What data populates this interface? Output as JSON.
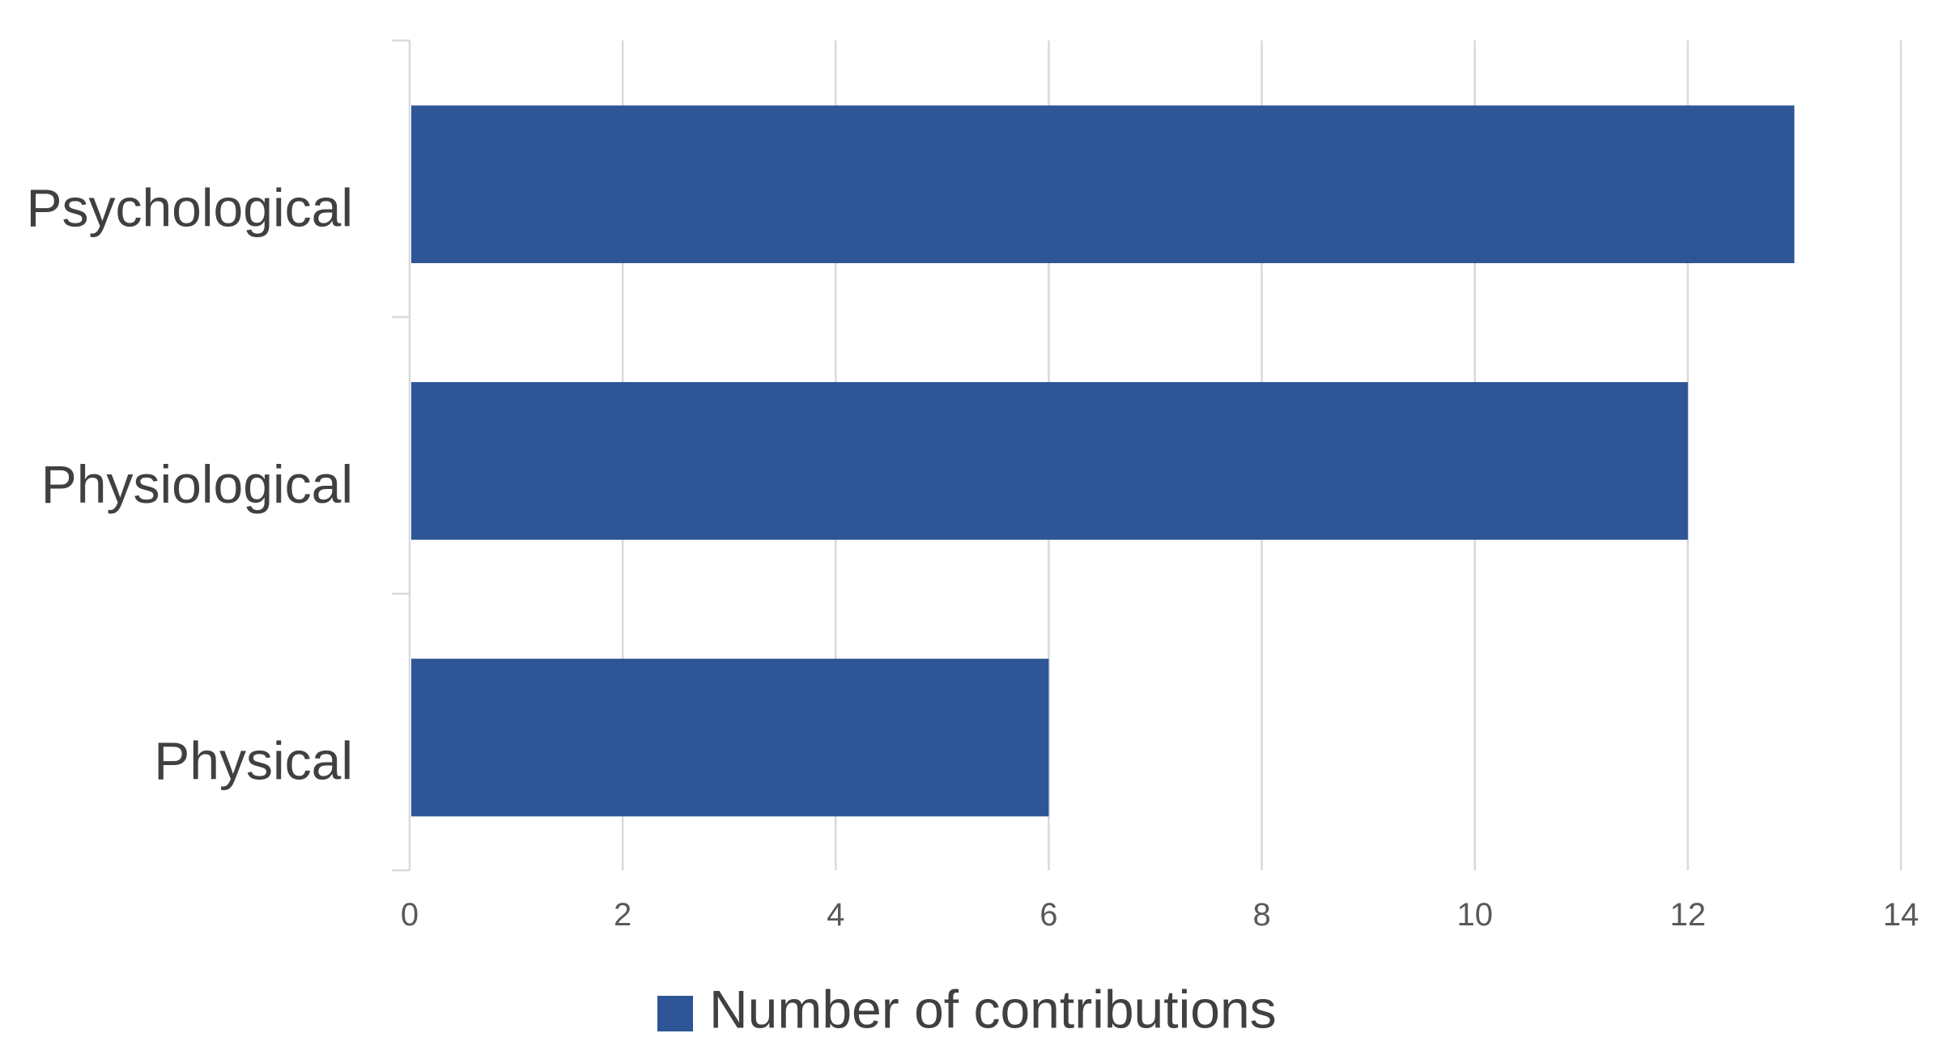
{
  "chart_data": {
    "type": "bar",
    "orientation": "horizontal",
    "categories": [
      "Psychological",
      "Physiological",
      "Physical"
    ],
    "series": [
      {
        "name": "Number of contributions",
        "values": [
          13,
          12,
          6
        ],
        "color": "#2E5596"
      }
    ],
    "title": "",
    "xlabel": "",
    "ylabel": "",
    "xlim": [
      0,
      14
    ],
    "xticks": [
      "0",
      "2",
      "4",
      "6",
      "8",
      "10",
      "12",
      "14"
    ],
    "grid": "vertical",
    "legend": {
      "position": "bottom",
      "label": "Number of contributions"
    },
    "colors": {
      "bar": "#2E5596",
      "grid": "#d9d9d9",
      "tick_text": "#595959",
      "category_text": "#404040",
      "legend_text": "#404040"
    }
  }
}
